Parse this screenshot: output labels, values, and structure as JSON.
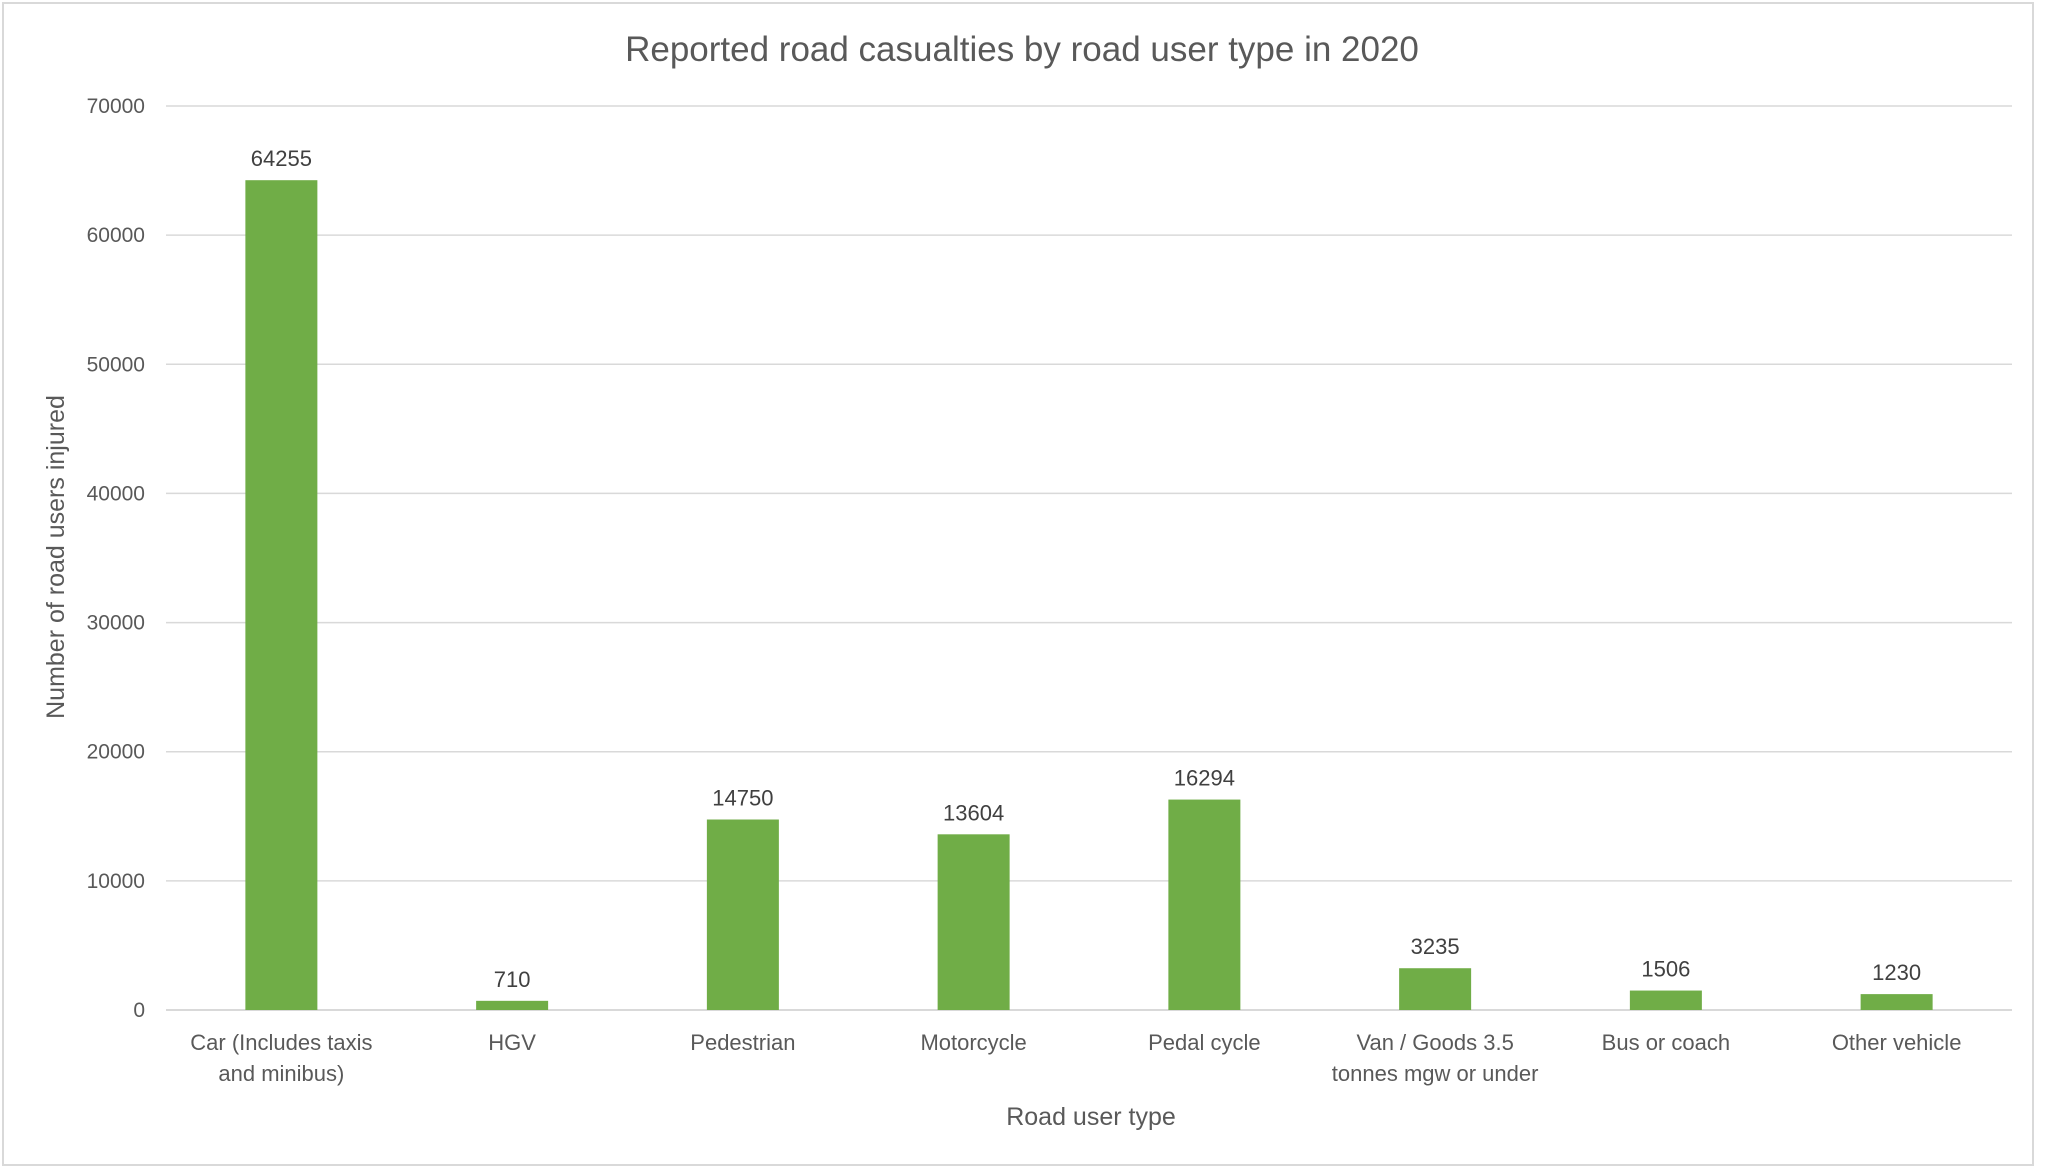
{
  "chart_data": {
    "type": "bar",
    "title": "Reported road casualties by road user type in 2020",
    "xlabel": "Road user type",
    "ylabel": "Number of road users injured",
    "categories": [
      [
        "Car (Includes taxis",
        "and minibus)"
      ],
      [
        "HGV"
      ],
      [
        "Pedestrian"
      ],
      [
        "Motorcycle"
      ],
      [
        "Pedal cycle"
      ],
      [
        "Van / Goods 3.5",
        "tonnes mgw or under"
      ],
      [
        "Bus or coach"
      ],
      [
        "Other vehicle"
      ]
    ],
    "values": [
      64255,
      710,
      14750,
      13604,
      16294,
      3235,
      1506,
      1230
    ],
    "data_labels": [
      "64255",
      "710",
      "14750",
      "13604",
      "16294",
      "3235",
      "1506",
      "1230"
    ],
    "ylim": [
      0,
      70000
    ],
    "yticks": [
      0,
      10000,
      20000,
      30000,
      40000,
      50000,
      60000,
      70000
    ],
    "ytick_labels": [
      "0",
      "10000",
      "20000",
      "30000",
      "40000",
      "50000",
      "60000",
      "70000"
    ],
    "grid": true,
    "legend": "none",
    "bar_color": "#70ad47"
  }
}
